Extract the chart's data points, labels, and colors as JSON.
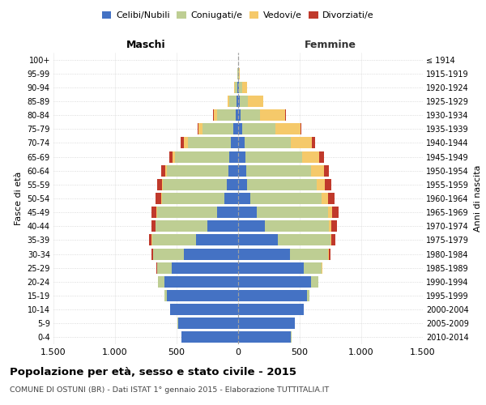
{
  "age_groups": [
    "0-4",
    "5-9",
    "10-14",
    "15-19",
    "20-24",
    "25-29",
    "30-34",
    "35-39",
    "40-44",
    "45-49",
    "50-54",
    "55-59",
    "60-64",
    "65-69",
    "70-74",
    "75-79",
    "80-84",
    "85-89",
    "90-94",
    "95-99",
    "100+"
  ],
  "birth_years": [
    "2010-2014",
    "2005-2009",
    "2000-2004",
    "1995-1999",
    "1990-1994",
    "1985-1989",
    "1980-1984",
    "1975-1979",
    "1970-1974",
    "1965-1969",
    "1960-1964",
    "1955-1959",
    "1950-1954",
    "1945-1949",
    "1940-1944",
    "1935-1939",
    "1930-1934",
    "1925-1929",
    "1920-1924",
    "1915-1919",
    "≤ 1914"
  ],
  "males": {
    "celibi": [
      460,
      490,
      550,
      580,
      600,
      540,
      440,
      340,
      250,
      170,
      110,
      90,
      80,
      70,
      60,
      40,
      20,
      10,
      5,
      2,
      2
    ],
    "coniugati": [
      1,
      2,
      5,
      20,
      50,
      120,
      250,
      360,
      420,
      490,
      510,
      520,
      500,
      440,
      350,
      250,
      150,
      60,
      20,
      3,
      0
    ],
    "vedovi": [
      0,
      0,
      0,
      0,
      0,
      0,
      1,
      2,
      3,
      5,
      8,
      10,
      15,
      20,
      30,
      30,
      30,
      15,
      5,
      1,
      0
    ],
    "divorziati": [
      0,
      0,
      0,
      1,
      2,
      5,
      10,
      20,
      30,
      40,
      40,
      35,
      30,
      30,
      25,
      10,
      5,
      0,
      0,
      0,
      0
    ]
  },
  "females": {
    "nubili": [
      430,
      460,
      530,
      560,
      590,
      530,
      420,
      320,
      220,
      150,
      100,
      75,
      65,
      60,
      50,
      35,
      20,
      12,
      8,
      3,
      2
    ],
    "coniugate": [
      1,
      2,
      5,
      20,
      60,
      150,
      310,
      430,
      520,
      580,
      580,
      560,
      530,
      460,
      380,
      270,
      160,
      70,
      25,
      5,
      0
    ],
    "vedove": [
      0,
      0,
      0,
      0,
      1,
      2,
      4,
      8,
      15,
      30,
      50,
      70,
      100,
      140,
      170,
      200,
      200,
      120,
      40,
      8,
      1
    ],
    "divorziate": [
      0,
      0,
      0,
      1,
      2,
      5,
      15,
      30,
      45,
      55,
      55,
      50,
      45,
      35,
      25,
      10,
      5,
      2,
      1,
      0,
      0
    ]
  },
  "colors": {
    "celibi_nubili": "#4472C4",
    "coniugati": "#BECE93",
    "vedovi": "#F5C96A",
    "divorziati": "#C0392B"
  },
  "xlim": 1500,
  "xtick_vals": [
    -1500,
    -1000,
    -500,
    0,
    500,
    1000,
    1500
  ],
  "xtick_labels": [
    "1.500",
    "1.000",
    "500",
    "0",
    "500",
    "1.000",
    "1.500"
  ],
  "title": "Popolazione per età, sesso e stato civile - 2015",
  "subtitle": "COMUNE DI OSTUNI (BR) - Dati ISTAT 1° gennaio 2015 - Elaborazione TUTTITALIA.IT",
  "ylabel_left": "Fasce di età",
  "ylabel_right": "Anni di nascita",
  "xlabel_maschi": "Maschi",
  "xlabel_femmine": "Femmine",
  "background_color": "#ffffff",
  "grid_color": "#cccccc",
  "legend_labels": [
    "Celibi/Nubili",
    "Coniugati/e",
    "Vedovi/e",
    "Divorziati/e"
  ]
}
